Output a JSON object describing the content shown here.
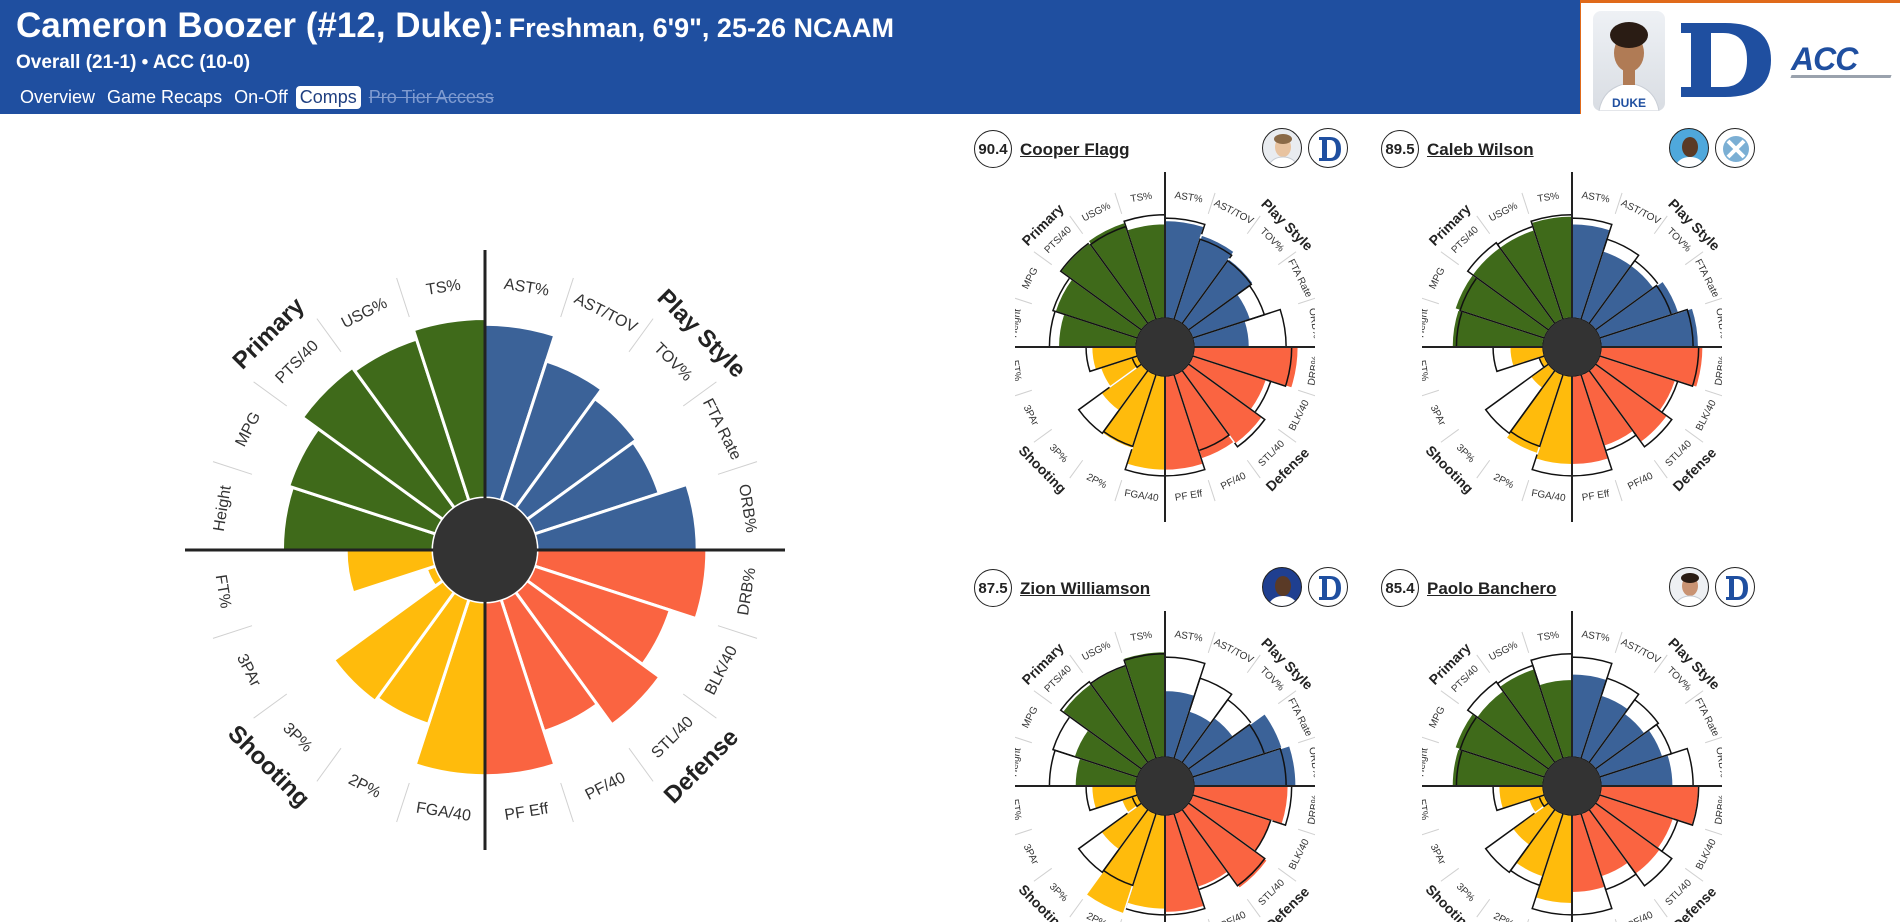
{
  "header": {
    "player_title": "Cameron Boozer (#12, Duke):",
    "subtitle": "Freshman, 6'9\", 25-26 NCAAM",
    "record": "Overall (21-1) • ACC (10-0)",
    "tabs": [
      {
        "label": "Overview"
      },
      {
        "label": "Game Recaps"
      },
      {
        "label": "On-Off"
      },
      {
        "label": "Comps"
      },
      {
        "label": "Pro Tier Access"
      }
    ],
    "conference_logo_text": "ACC"
  },
  "colors": {
    "header_bg": "#1f4fa0",
    "primary": "#3f6a1a",
    "play_style": "#3b6298",
    "defense": "#fa6441",
    "shooting": "#ffbb0c"
  },
  "chart_data": [
    {
      "type": "radial-bar",
      "player": "Cameron Boozer",
      "group_labels": {
        "primary": "Primary",
        "play_style": "Play Style",
        "defense": "Defense",
        "shooting": "Shooting"
      },
      "categories": [
        "AST%",
        "AST/TOV",
        "TOV%",
        "FTA Rate",
        "ORB%",
        "DRB%",
        "BLK/40",
        "STL/40",
        "PF/40",
        "PF Eff",
        "FGA/40",
        "2P%",
        "3P%",
        "3PAr",
        "FT%",
        "Height",
        "MPG",
        "PTS/40",
        "USG%",
        "TS%"
      ],
      "groups": [
        "play_style",
        "play_style",
        "play_style",
        "play_style",
        "play_style",
        "defense",
        "defense",
        "defense",
        "defense",
        "defense",
        "shooting",
        "shooting",
        "shooting",
        "shooting",
        "shooting",
        "primary",
        "primary",
        "primary",
        "primary",
        "primary"
      ],
      "values": [
        90,
        76,
        70,
        68,
        83,
        88,
        74,
        85,
        72,
        90,
        90,
        68,
        70,
        5,
        45,
        78,
        80,
        90,
        88,
        93
      ],
      "range": [
        0,
        100
      ]
    },
    {
      "type": "radial-bar",
      "player": "Cooper Flagg",
      "score": "90.4",
      "categories": [
        "AST%",
        "AST/TOV",
        "TOV%",
        "FTA Rate",
        "ORB%",
        "DRB%",
        "BLK/40",
        "STL/40",
        "PF/40",
        "PF Eff",
        "FGA/40",
        "2P%",
        "3P%",
        "3PAr",
        "FT%",
        "Height",
        "MPG",
        "PTS/40",
        "USG%",
        "TS%"
      ],
      "values": [
        88,
        80,
        72,
        55,
        50,
        94,
        70,
        82,
        80,
        85,
        85,
        70,
        45,
        35,
        40,
        70,
        78,
        90,
        92,
        85
      ],
      "comp_values": [
        90,
        76,
        70,
        68,
        83,
        88,
        74,
        85,
        72,
        90,
        90,
        68,
        70,
        5,
        45,
        78,
        80,
        90,
        88,
        93
      ],
      "range": [
        0,
        100
      ]
    },
    {
      "type": "radial-bar",
      "player": "Caleb Wilson",
      "score": "89.5",
      "categories": [
        "AST%",
        "AST/TOV",
        "TOV%",
        "FTA Rate",
        "ORB%",
        "DRB%",
        "BLK/40",
        "STL/40",
        "PF/40",
        "PF Eff",
        "FGA/40",
        "2P%",
        "3P%",
        "3PAr",
        "FT%",
        "Height",
        "MPG",
        "PTS/40",
        "USG%",
        "TS%"
      ],
      "values": [
        85,
        65,
        65,
        75,
        88,
        92,
        72,
        80,
        68,
        80,
        80,
        75,
        20,
        5,
        30,
        82,
        85,
        85,
        85,
        92
      ],
      "comp_values": [
        90,
        76,
        70,
        68,
        83,
        88,
        74,
        85,
        72,
        90,
        90,
        68,
        70,
        5,
        45,
        78,
        80,
        90,
        88,
        93
      ],
      "range": [
        0,
        100
      ]
    },
    {
      "type": "radial-bar",
      "player": "Zion Williamson",
      "score": "87.5",
      "categories": [
        "AST%",
        "AST/TOV",
        "TOV%",
        "FTA Rate",
        "ORB%",
        "DRB%",
        "BLK/40",
        "STL/40",
        "PF/40",
        "PF Eff",
        "FGA/40",
        "2P%",
        "3P%",
        "3PAr",
        "FT%",
        "Height",
        "MPG",
        "PTS/40",
        "USG%",
        "TS%"
      ],
      "values": [
        60,
        45,
        50,
        85,
        92,
        85,
        75,
        88,
        70,
        88,
        85,
        95,
        45,
        15,
        40,
        55,
        60,
        88,
        88,
        95
      ],
      "comp_values": [
        90,
        76,
        70,
        68,
        83,
        88,
        74,
        85,
        72,
        90,
        90,
        68,
        70,
        5,
        45,
        78,
        80,
        90,
        88,
        93
      ],
      "range": [
        0,
        100
      ]
    },
    {
      "type": "radial-bar",
      "player": "Paolo Banchero",
      "score": "85.4",
      "categories": [
        "AST%",
        "AST/TOV",
        "TOV%",
        "FTA Rate",
        "ORB%",
        "DRB%",
        "BLK/40",
        "STL/40",
        "PF/40",
        "PF Eff",
        "FGA/40",
        "2P%",
        "3P%",
        "3PAr",
        "FT%",
        "Height",
        "MPG",
        "PTS/40",
        "USG%",
        "TS%"
      ],
      "values": [
        75,
        60,
        55,
        60,
        65,
        88,
        70,
        72,
        60,
        70,
        80,
        60,
        40,
        15,
        40,
        82,
        85,
        80,
        85,
        70
      ],
      "comp_values": [
        90,
        76,
        70,
        68,
        83,
        88,
        74,
        85,
        72,
        90,
        90,
        68,
        70,
        5,
        45,
        78,
        80,
        90,
        88,
        93
      ],
      "range": [
        0,
        100
      ]
    }
  ]
}
